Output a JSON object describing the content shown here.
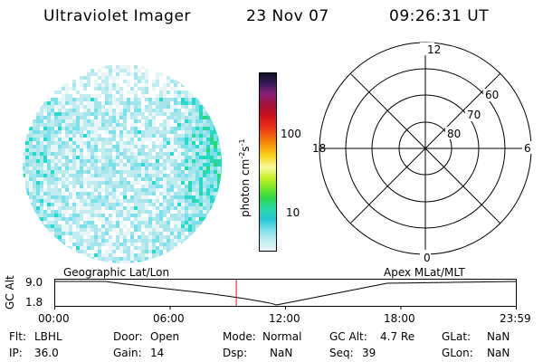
{
  "header": {
    "title": "Ultraviolet Imager",
    "date": "23 Nov 07",
    "time": "09:26:31 UT"
  },
  "colorbar": {
    "label": "photon cm",
    "label_exp1": "-2",
    "label_mid": "s",
    "label_exp2": "-1",
    "ticks": [
      "100",
      "10"
    ],
    "colors": [
      "#101028",
      "#3a1a5a",
      "#8a1e78",
      "#a0103a",
      "#c8101e",
      "#e82818",
      "#f06010",
      "#f89c08",
      "#f8d820",
      "#f8f8a0",
      "#c8f028",
      "#78e828",
      "#28d848",
      "#28d8a8",
      "#28c8d8",
      "#7ce0e8",
      "#c0ecf0",
      "#e8f6f8"
    ]
  },
  "polar": {
    "labels": {
      "top": "12",
      "bottom": "0",
      "left": "18",
      "right": "6",
      "ring60": "60",
      "ring70": "70",
      "ring80": "80"
    }
  },
  "timeline": {
    "ylabel": "GC Alt",
    "y_ticks": [
      "9.0",
      "1.8"
    ],
    "left_title": "Geographic Lat/Lon",
    "right_title": "Apex MLat/MLT",
    "x_ticks": [
      "00:00",
      "06:00",
      "12:00",
      "18:00",
      "23:59"
    ],
    "marker_color": "#d01818"
  },
  "status": {
    "row1": {
      "flt_label": "Flt:",
      "flt_value": "LBHL",
      "door_label": "Door:",
      "door_value": "Open",
      "mode_label": "Mode:",
      "mode_value": "Normal",
      "gcalt_label": "GC Alt:",
      "gcalt_value": "4.7 Re",
      "glat_label": "GLat:",
      "glat_value": "NaN"
    },
    "row2": {
      "ip_label": "IP:",
      "ip_value": "36.0",
      "gain_label": "Gain:",
      "gain_value": "14",
      "dsp_label": "Dsp:",
      "dsp_value": "NaN",
      "seq_label": "Seq:",
      "seq_value": "39",
      "glon_label": "GLon:",
      "glon_value": "NaN"
    }
  }
}
